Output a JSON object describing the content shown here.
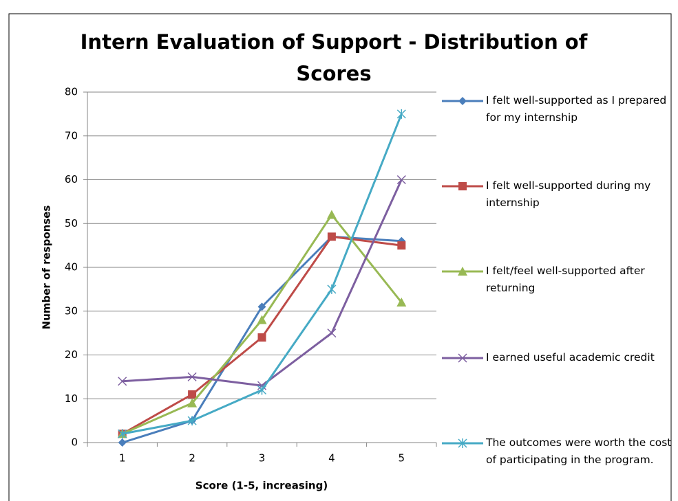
{
  "chart_data": {
    "type": "line",
    "title": "Intern Evaluation of Support - Distribution of Scores",
    "xlabel": "Score (1-5, increasing)",
    "ylabel": "Number of responses",
    "categories": [
      "1",
      "2",
      "3",
      "4",
      "5"
    ],
    "ylim": [
      0,
      80
    ],
    "yticks": [
      0,
      10,
      20,
      30,
      40,
      50,
      60,
      70,
      80
    ],
    "grid": true,
    "legend": "right",
    "series": [
      {
        "name": "I felt well-supported as I prepared for my internship",
        "color": "#4a7ebb",
        "marker": "diamond",
        "values": [
          0,
          5,
          31,
          47,
          46
        ]
      },
      {
        "name": "I felt well-supported during my internship",
        "color": "#be4b48",
        "marker": "square",
        "values": [
          2,
          11,
          24,
          47,
          45
        ]
      },
      {
        "name": "I felt/feel well-supported after returning",
        "color": "#98b954",
        "marker": "triangle",
        "values": [
          2,
          9,
          28,
          52,
          32
        ]
      },
      {
        "name": "I earned useful academic credit",
        "color": "#7d5fa0",
        "marker": "x",
        "values": [
          14,
          15,
          13,
          25,
          60
        ]
      },
      {
        "name": "The outcomes were worth the cost of participating in the program.",
        "color": "#46aac5",
        "marker": "star",
        "values": [
          2,
          5,
          12,
          35,
          75
        ]
      }
    ]
  }
}
